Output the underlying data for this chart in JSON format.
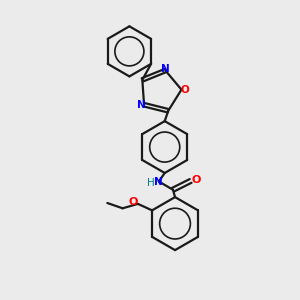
{
  "background_color": "#ebebeb",
  "bond_color": "#1a1a1a",
  "nitrogen_color": "#0000ff",
  "oxygen_color": "#ff0000",
  "teal_color": "#008080",
  "line_width": 1.6,
  "figsize": [
    3.0,
    3.0
  ],
  "dpi": 100,
  "xlim": [
    0,
    10
  ],
  "ylim": [
    0,
    10
  ]
}
